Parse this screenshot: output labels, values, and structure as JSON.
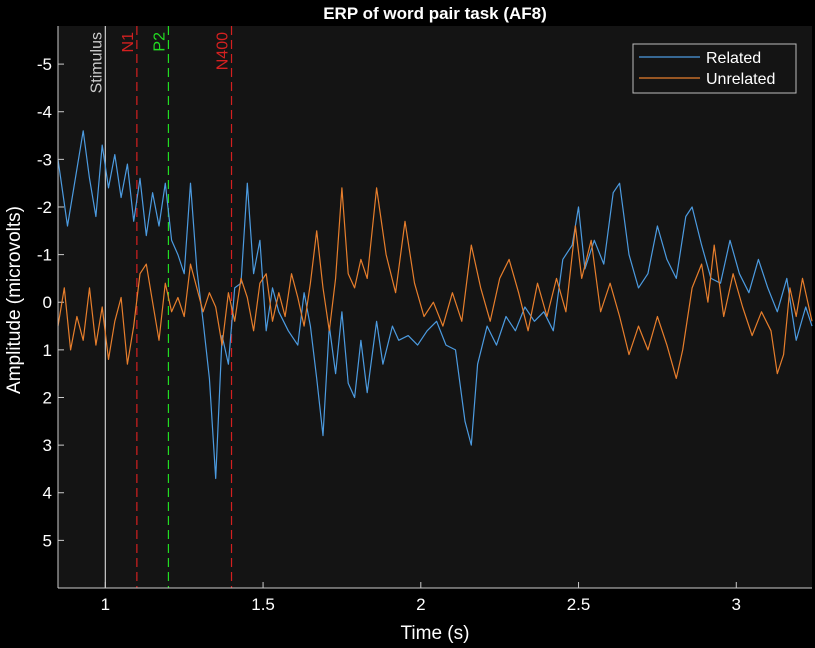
{
  "chart_data": {
    "type": "line",
    "title": "ERP of word pair task (AF8)",
    "xlabel": "Time (s)",
    "ylabel": "Amplitude (microvolts)",
    "xlim": [
      0.85,
      3.24
    ],
    "ylim": [
      -5.8,
      6.0
    ],
    "y_reversed": true,
    "xticks": [
      1,
      1.5,
      2,
      2.5,
      3
    ],
    "xtick_labels": [
      "1",
      "1.5",
      "2",
      "2.5",
      "3"
    ],
    "yticks": [
      -5,
      -4,
      -3,
      -2,
      -1,
      0,
      1,
      2,
      3,
      4,
      5
    ],
    "ytick_labels": [
      "-5",
      "-4",
      "-3",
      "-2",
      "-1",
      "0",
      "1",
      "2",
      "3",
      "4",
      "5"
    ],
    "grid": false,
    "legend_position": "top-right",
    "markers": [
      {
        "x": 1.0,
        "label": "Stimulus",
        "color": "#cccccc",
        "style": "solid"
      },
      {
        "x": 1.1,
        "label": "N1",
        "color": "#d42020",
        "style": "dashed"
      },
      {
        "x": 1.2,
        "label": "P2",
        "color": "#22dd22",
        "style": "dashed"
      },
      {
        "x": 1.4,
        "label": "N400",
        "color": "#d42020",
        "style": "dashed"
      }
    ],
    "series": [
      {
        "name": "Related",
        "color": "#4c9be0",
        "points": [
          [
            0.85,
            -3.0
          ],
          [
            0.88,
            -1.6
          ],
          [
            0.9,
            -2.4
          ],
          [
            0.93,
            -3.6
          ],
          [
            0.95,
            -2.6
          ],
          [
            0.97,
            -1.8
          ],
          [
            0.99,
            -3.3
          ],
          [
            1.01,
            -2.4
          ],
          [
            1.03,
            -3.1
          ],
          [
            1.05,
            -2.2
          ],
          [
            1.07,
            -2.9
          ],
          [
            1.09,
            -1.7
          ],
          [
            1.11,
            -2.6
          ],
          [
            1.13,
            -1.4
          ],
          [
            1.15,
            -2.3
          ],
          [
            1.17,
            -1.6
          ],
          [
            1.19,
            -2.5
          ],
          [
            1.21,
            -1.3
          ],
          [
            1.23,
            -1.0
          ],
          [
            1.25,
            -0.6
          ],
          [
            1.27,
            -2.5
          ],
          [
            1.29,
            -0.7
          ],
          [
            1.31,
            0.4
          ],
          [
            1.33,
            1.6
          ],
          [
            1.35,
            3.7
          ],
          [
            1.37,
            0.7
          ],
          [
            1.39,
            1.3
          ],
          [
            1.41,
            -0.3
          ],
          [
            1.43,
            -0.4
          ],
          [
            1.45,
            -2.5
          ],
          [
            1.47,
            -0.6
          ],
          [
            1.49,
            -1.3
          ],
          [
            1.51,
            0.6
          ],
          [
            1.53,
            -0.3
          ],
          [
            1.55,
            0.2
          ],
          [
            1.58,
            0.6
          ],
          [
            1.61,
            0.9
          ],
          [
            1.63,
            -0.2
          ],
          [
            1.65,
            0.5
          ],
          [
            1.67,
            1.6
          ],
          [
            1.69,
            2.8
          ],
          [
            1.71,
            0.5
          ],
          [
            1.73,
            1.5
          ],
          [
            1.75,
            0.2
          ],
          [
            1.77,
            1.7
          ],
          [
            1.79,
            2.0
          ],
          [
            1.81,
            0.8
          ],
          [
            1.83,
            1.9
          ],
          [
            1.86,
            0.4
          ],
          [
            1.88,
            1.3
          ],
          [
            1.91,
            0.5
          ],
          [
            1.93,
            0.8
          ],
          [
            1.96,
            0.7
          ],
          [
            1.99,
            0.9
          ],
          [
            2.02,
            0.6
          ],
          [
            2.05,
            0.4
          ],
          [
            2.08,
            0.9
          ],
          [
            2.11,
            1.0
          ],
          [
            2.14,
            2.5
          ],
          [
            2.16,
            3.0
          ],
          [
            2.18,
            1.3
          ],
          [
            2.21,
            0.5
          ],
          [
            2.24,
            0.9
          ],
          [
            2.27,
            0.3
          ],
          [
            2.3,
            0.6
          ],
          [
            2.33,
            0.1
          ],
          [
            2.36,
            0.4
          ],
          [
            2.39,
            0.2
          ],
          [
            2.42,
            0.6
          ],
          [
            2.45,
            -0.9
          ],
          [
            2.48,
            -1.2
          ],
          [
            2.5,
            -2.0
          ],
          [
            2.52,
            -0.7
          ],
          [
            2.55,
            -1.3
          ],
          [
            2.58,
            -0.8
          ],
          [
            2.61,
            -2.3
          ],
          [
            2.63,
            -2.5
          ],
          [
            2.66,
            -1.0
          ],
          [
            2.69,
            -0.3
          ],
          [
            2.72,
            -0.6
          ],
          [
            2.75,
            -1.6
          ],
          [
            2.78,
            -0.9
          ],
          [
            2.81,
            -0.5
          ],
          [
            2.84,
            -1.8
          ],
          [
            2.86,
            -2.0
          ],
          [
            2.89,
            -1.2
          ],
          [
            2.92,
            -0.5
          ],
          [
            2.95,
            -0.4
          ],
          [
            2.98,
            -1.3
          ],
          [
            3.01,
            -0.6
          ],
          [
            3.04,
            -0.2
          ],
          [
            3.07,
            -0.9
          ],
          [
            3.1,
            -0.3
          ],
          [
            3.13,
            0.2
          ],
          [
            3.16,
            -0.5
          ],
          [
            3.19,
            0.8
          ],
          [
            3.22,
            0.1
          ],
          [
            3.24,
            0.5
          ]
        ]
      },
      {
        "name": "Unrelated",
        "color": "#e77e2c",
        "points": [
          [
            0.85,
            0.5
          ],
          [
            0.87,
            -0.3
          ],
          [
            0.89,
            1.0
          ],
          [
            0.91,
            0.3
          ],
          [
            0.93,
            0.8
          ],
          [
            0.95,
            -0.3
          ],
          [
            0.97,
            0.9
          ],
          [
            0.99,
            0.1
          ],
          [
            1.01,
            1.2
          ],
          [
            1.03,
            0.4
          ],
          [
            1.05,
            -0.1
          ],
          [
            1.07,
            1.3
          ],
          [
            1.09,
            0.5
          ],
          [
            1.11,
            -0.6
          ],
          [
            1.13,
            -0.8
          ],
          [
            1.15,
            0.0
          ],
          [
            1.17,
            0.8
          ],
          [
            1.19,
            -0.4
          ],
          [
            1.21,
            0.2
          ],
          [
            1.23,
            -0.1
          ],
          [
            1.25,
            0.3
          ],
          [
            1.27,
            -0.8
          ],
          [
            1.29,
            -0.3
          ],
          [
            1.31,
            0.2
          ],
          [
            1.33,
            -0.2
          ],
          [
            1.35,
            0.1
          ],
          [
            1.37,
            0.9
          ],
          [
            1.39,
            -0.2
          ],
          [
            1.41,
            0.4
          ],
          [
            1.43,
            -0.5
          ],
          [
            1.45,
            -0.1
          ],
          [
            1.47,
            0.6
          ],
          [
            1.49,
            -0.4
          ],
          [
            1.51,
            -0.6
          ],
          [
            1.53,
            0.4
          ],
          [
            1.55,
            -0.2
          ],
          [
            1.57,
            0.3
          ],
          [
            1.59,
            -0.6
          ],
          [
            1.61,
            -0.1
          ],
          [
            1.63,
            0.5
          ],
          [
            1.65,
            -0.4
          ],
          [
            1.67,
            -1.5
          ],
          [
            1.69,
            -0.3
          ],
          [
            1.71,
            0.6
          ],
          [
            1.73,
            -0.5
          ],
          [
            1.75,
            -2.4
          ],
          [
            1.77,
            -0.6
          ],
          [
            1.79,
            -0.3
          ],
          [
            1.81,
            -0.9
          ],
          [
            1.83,
            -0.5
          ],
          [
            1.86,
            -2.4
          ],
          [
            1.89,
            -1.0
          ],
          [
            1.92,
            -0.2
          ],
          [
            1.95,
            -1.7
          ],
          [
            1.98,
            -0.4
          ],
          [
            2.01,
            0.3
          ],
          [
            2.04,
            0.0
          ],
          [
            2.07,
            0.5
          ],
          [
            2.1,
            -0.2
          ],
          [
            2.13,
            0.4
          ],
          [
            2.16,
            -1.2
          ],
          [
            2.19,
            -0.3
          ],
          [
            2.22,
            0.4
          ],
          [
            2.25,
            -0.5
          ],
          [
            2.28,
            -0.9
          ],
          [
            2.31,
            -0.2
          ],
          [
            2.34,
            0.6
          ],
          [
            2.37,
            -0.4
          ],
          [
            2.4,
            0.3
          ],
          [
            2.43,
            -0.5
          ],
          [
            2.46,
            0.2
          ],
          [
            2.49,
            -1.6
          ],
          [
            2.51,
            -0.5
          ],
          [
            2.54,
            -1.3
          ],
          [
            2.57,
            0.2
          ],
          [
            2.6,
            -0.4
          ],
          [
            2.63,
            0.3
          ],
          [
            2.66,
            1.1
          ],
          [
            2.69,
            0.5
          ],
          [
            2.72,
            1.0
          ],
          [
            2.75,
            0.3
          ],
          [
            2.78,
            0.9
          ],
          [
            2.81,
            1.6
          ],
          [
            2.83,
            1.0
          ],
          [
            2.86,
            -0.3
          ],
          [
            2.89,
            -0.8
          ],
          [
            2.91,
            0.0
          ],
          [
            2.93,
            -1.2
          ],
          [
            2.96,
            0.3
          ],
          [
            2.99,
            -0.6
          ],
          [
            3.02,
            0.1
          ],
          [
            3.05,
            0.7
          ],
          [
            3.08,
            0.2
          ],
          [
            3.11,
            0.6
          ],
          [
            3.13,
            1.5
          ],
          [
            3.15,
            1.1
          ],
          [
            3.17,
            -0.3
          ],
          [
            3.19,
            0.3
          ],
          [
            3.21,
            -0.5
          ],
          [
            3.24,
            0.4
          ]
        ]
      }
    ]
  },
  "colors": {
    "page_background": "#000000",
    "plot_background": "#141414",
    "axis": "#cccccc",
    "text": "#ffffff",
    "legend_border": "#bbbbbb"
  }
}
